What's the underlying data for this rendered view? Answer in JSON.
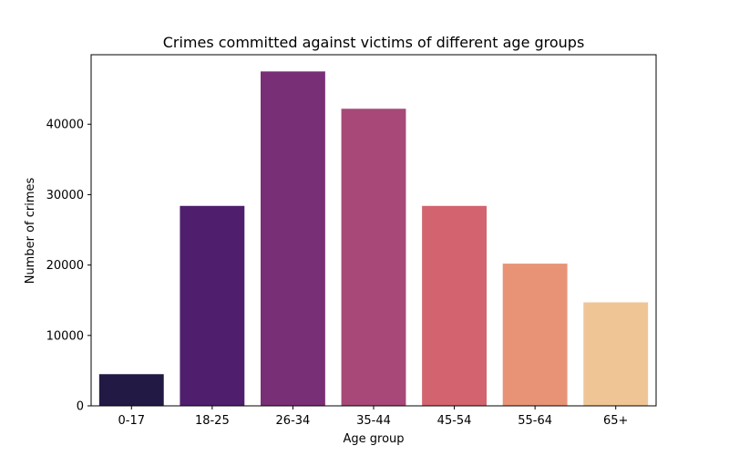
{
  "chart_data": {
    "type": "bar",
    "title": "Crimes committed against victims of different age groups",
    "xlabel": "Age group",
    "ylabel": "Number of crimes",
    "categories": [
      "0-17",
      "18-25",
      "26-34",
      "35-44",
      "45-54",
      "55-64",
      "65+"
    ],
    "values": [
      4500,
      28400,
      47500,
      42200,
      28400,
      20200,
      14700
    ],
    "colors": [
      "#221a44",
      "#4f1f6e",
      "#782f76",
      "#a74878",
      "#d2636f",
      "#e89376",
      "#f0c595"
    ],
    "ylim": [
      0,
      49875
    ],
    "yticks": [
      0,
      10000,
      20000,
      30000,
      40000
    ],
    "grid": false,
    "legend": "none"
  }
}
